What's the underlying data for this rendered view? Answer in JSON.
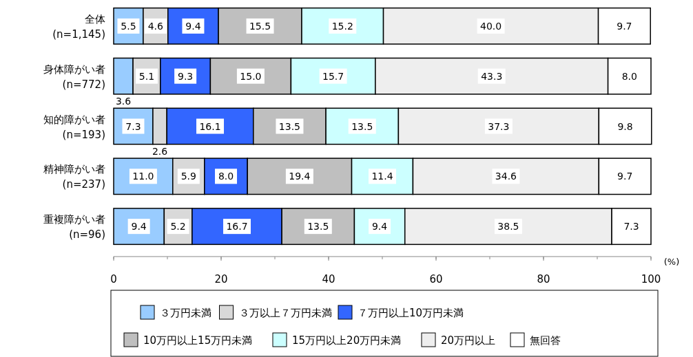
{
  "chart_data": {
    "type": "bar",
    "orientation": "horizontal",
    "stacked": true,
    "legend": "bottom",
    "grid": false,
    "xlabel": "(%)",
    "xlim": [
      0,
      100
    ],
    "xticks": [
      0,
      20,
      40,
      60,
      80,
      100
    ],
    "categories": [
      "全体\n(n=1,145)",
      "身体障がい者\n(n=772)",
      "知的障がい者\n(n=193)",
      "精神障がい者\n(n=237)",
      "重複障がい者\n(n=96)"
    ],
    "series": [
      {
        "name": "３万円未満",
        "color": "#99ccff",
        "values": [
          5.5,
          3.6,
          7.3,
          11.0,
          9.4
        ],
        "value_labels": [
          "5.5",
          "3.6",
          "7.3",
          "11.0",
          "9.4"
        ]
      },
      {
        "name": "３万以上７万円未満",
        "color": "#d9d9d9",
        "values": [
          4.6,
          5.1,
          2.6,
          5.9,
          5.2
        ],
        "value_labels": [
          "4.6",
          "5.1",
          "2.6",
          "5.9",
          "5.2"
        ]
      },
      {
        "name": "７万円以上10万円未満",
        "color": "#3366ff",
        "values": [
          9.4,
          9.3,
          16.1,
          8.0,
          16.7
        ],
        "value_labels": [
          "9.4",
          "9.3",
          "16.1",
          "8.0",
          "16.7"
        ]
      },
      {
        "name": "10万円以上15万円未満",
        "color": "#bfbfbf",
        "values": [
          15.5,
          15.0,
          13.5,
          19.4,
          13.5
        ],
        "value_labels": [
          "15.5",
          "15.0",
          "13.5",
          "19.4",
          "13.5"
        ]
      },
      {
        "name": "15万円以上20万円未満",
        "color": "#ccffff",
        "values": [
          15.2,
          15.7,
          13.5,
          11.4,
          9.4
        ],
        "value_labels": [
          "15.2",
          "15.7",
          "13.5",
          "11.4",
          "9.4"
        ]
      },
      {
        "name": "20万円以上",
        "color": "#eeeeee",
        "values": [
          40.0,
          43.3,
          37.3,
          34.6,
          38.5
        ],
        "value_labels": [
          "40.0",
          "43.3",
          "37.3",
          "34.6",
          "38.5"
        ]
      },
      {
        "name": "無回答",
        "color": "#ffffff",
        "values": [
          9.7,
          8.0,
          9.8,
          9.7,
          7.3
        ],
        "value_labels": [
          "9.7",
          "8.0",
          "9.8",
          "9.7",
          "7.3"
        ]
      }
    ]
  }
}
